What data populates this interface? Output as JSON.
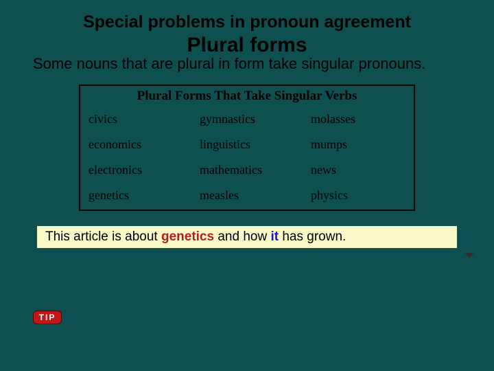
{
  "title": "Special problems in pronoun agreement",
  "subtitle": "Plural forms",
  "intro": "Some nouns that are plural in form take singular pronouns.",
  "table": {
    "heading": "Plural Forms That Take Singular Verbs",
    "rows": [
      [
        "civics",
        "gymnastics",
        "molasses"
      ],
      [
        "economics",
        "linguistics",
        "mumps"
      ],
      [
        "electronics",
        "mathematics",
        "news"
      ],
      [
        "genetics",
        "measles",
        "physics"
      ]
    ]
  },
  "example": {
    "pre": "This article is about ",
    "hl1": "genetics",
    "mid": " and how ",
    "hl2": "it",
    "post": " has grown."
  },
  "tip_label": "TIP",
  "colors": {
    "background": "#0e5050",
    "example_bg": "#f8f8c8",
    "hl1": "#b02020",
    "hl2": "#1818c0",
    "tip_bg": "#c01818"
  },
  "fonts": {
    "body": "Verdana",
    "table": "Times New Roman"
  }
}
